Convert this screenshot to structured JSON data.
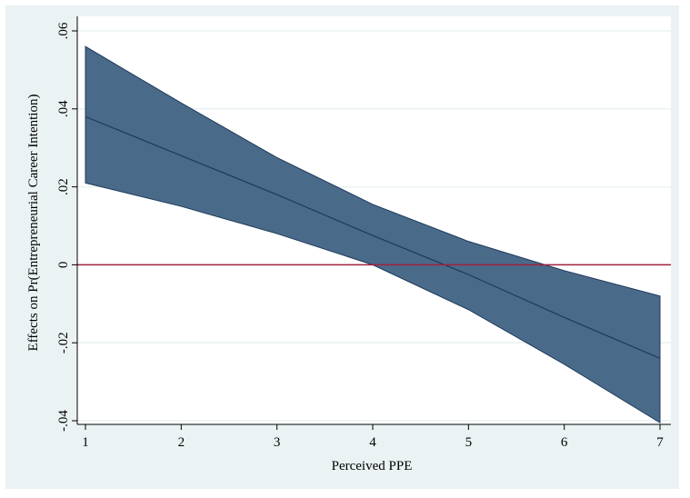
{
  "chart_data": {
    "type": "area",
    "xlabel": "Perceived PPE",
    "ylabel": "Effects on Pr(Entrepreneurial Career Intention)",
    "xlim": [
      1,
      7
    ],
    "ylim": [
      -0.04,
      0.06
    ],
    "x_ticks": [
      1,
      2,
      3,
      4,
      5,
      6,
      7
    ],
    "x_tick_labels": [
      "1",
      "2",
      "3",
      "4",
      "5",
      "6",
      "7"
    ],
    "y_ticks": [
      -0.04,
      -0.02,
      0,
      0.02,
      0.04,
      0.06
    ],
    "y_tick_labels": [
      "-.04",
      "-.02",
      "0",
      ".02",
      ".04",
      ".06"
    ],
    "grid": true,
    "legend": "none",
    "x": [
      1,
      2,
      3,
      4,
      5,
      6,
      7
    ],
    "series": [
      {
        "values": [
          0.038,
          0.028,
          0.018,
          0.0075,
          -0.0025,
          -0.0135,
          -0.024
        ]
      },
      {
        "values": [
          0.056,
          0.0415,
          0.0275,
          0.0155,
          0.006,
          -0.0015,
          -0.008
        ]
      },
      {
        "values": [
          0.021,
          0.015,
          0.008,
          0.0,
          -0.0115,
          -0.0255,
          -0.0405
        ]
      }
    ],
    "reference_line": {
      "y": 0,
      "color": "#a3213d"
    },
    "colors": {
      "band": "#4a6a8a",
      "line": "#1e3a5a",
      "reference": "#a3213d",
      "plot_bg": "#ffffff",
      "outer_bg": "#eaf2f3",
      "grid": "#eaf2f3"
    }
  }
}
